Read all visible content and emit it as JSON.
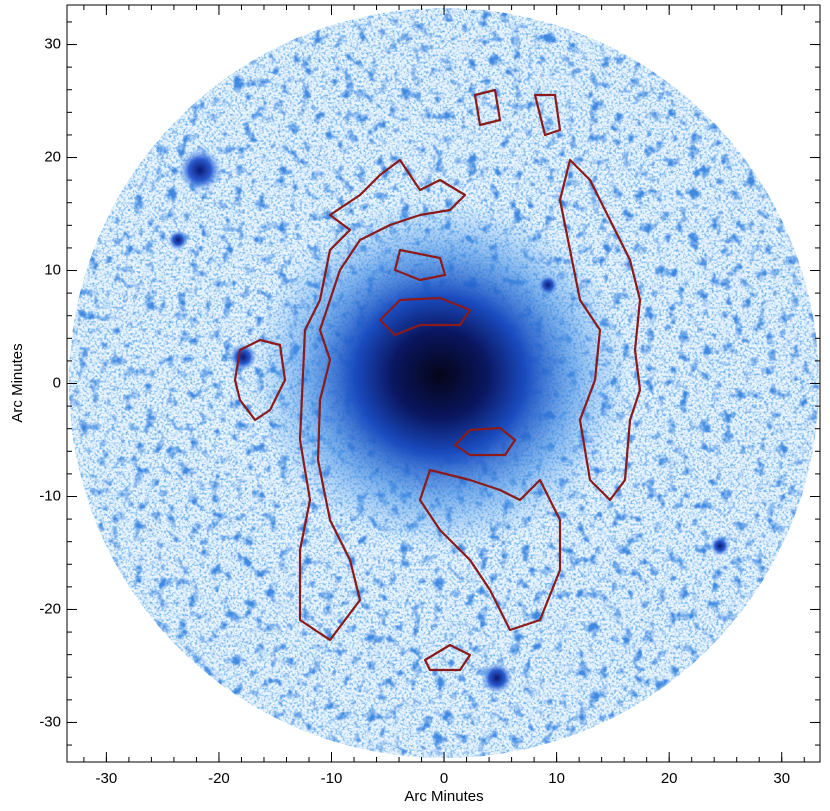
{
  "chart_data": {
    "type": "image",
    "xlabel": "Arc Minutes",
    "ylabel": "Arc Minutes",
    "xlim": [
      -33.5,
      33.4
    ],
    "ylim": [
      -33.5,
      33.5
    ],
    "xticks": [
      -30,
      -20,
      -10,
      0,
      10,
      20,
      30
    ],
    "yticks": [
      -30,
      -20,
      -10,
      0,
      10,
      20,
      30
    ]
  }
}
